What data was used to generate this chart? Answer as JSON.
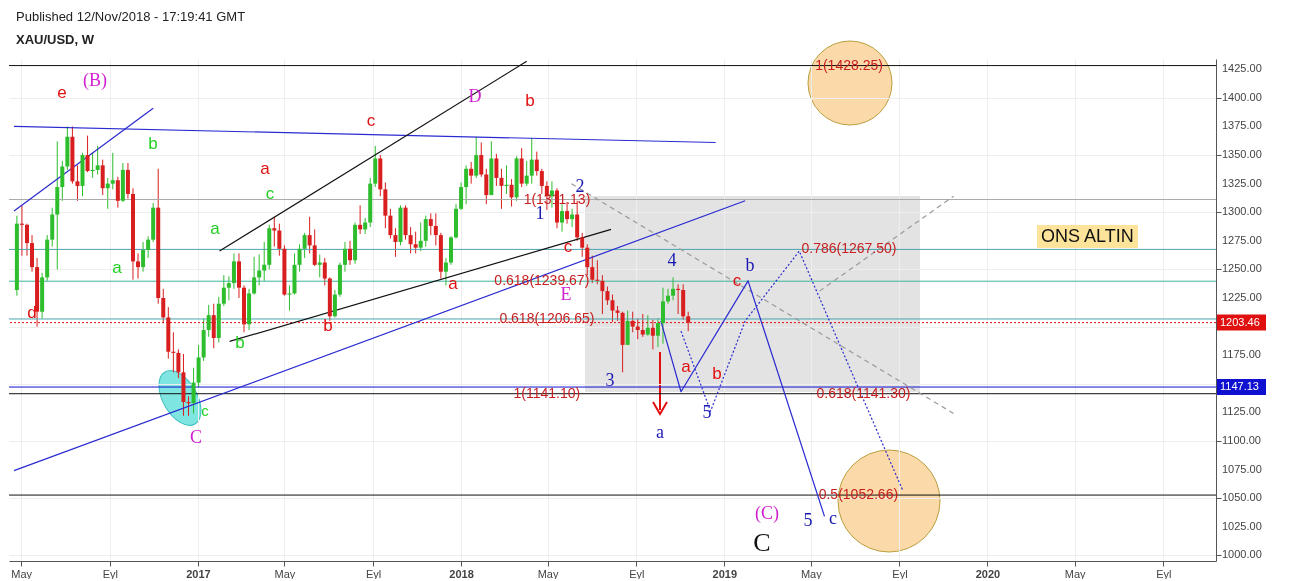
{
  "chart_data": {
    "type": "candlestick",
    "title": "XAU/USD, W",
    "annotations": [
      "Published 12/Nov/2018 - 17:19:41 GMT",
      "ONS ALTIN",
      "e",
      "(B)",
      "b",
      "a",
      "d",
      "c",
      "C",
      "a",
      "a",
      "c",
      "b",
      "c",
      "b",
      "a",
      "D",
      "b",
      "1",
      "2",
      "c",
      "E",
      "3",
      "4",
      "a",
      "5",
      "b",
      "c",
      "a",
      "b",
      "(C)",
      "5",
      "c",
      "C",
      {
        "text": "1(1428.25)",
        "x": "2019-06-23",
        "y": 1428.25
      },
      {
        "text": "0.786(1267.50)",
        "x": "2019-06-23",
        "y": 1267.5
      },
      {
        "text": "0.618(1239.67)",
        "x": "2018-04-23",
        "y": 1239.67
      },
      {
        "text": "0.618(1206.65)",
        "x": "2018-04-30",
        "y": 1206.65
      },
      {
        "text": "1(1141.10)",
        "x": "2018-04-30",
        "y": 1141.1
      },
      {
        "text": "0.618(1141.30)",
        "x": "2019-07-13",
        "y": 1141.3
      },
      {
        "text": "0.5(1052.66)",
        "x": "2019-07-06",
        "y": 1052.66
      },
      {
        "text": "1(1311.13)",
        "x": "2018-05-14",
        "y": 1311.13
      }
    ],
    "x": [
      "2016-04-25",
      "2016-05-02",
      "2016-05-09",
      "2016-05-16",
      "2016-05-23",
      "2016-05-30",
      "2016-06-06",
      "2016-06-13",
      "2016-06-20",
      "2016-06-27",
      "2016-07-04",
      "2016-07-11",
      "2016-07-18",
      "2016-07-25",
      "2016-08-01",
      "2016-08-08",
      "2016-08-15",
      "2016-08-22",
      "2016-08-29",
      "2016-09-05",
      "2016-09-12",
      "2016-09-19",
      "2016-09-26",
      "2016-10-03",
      "2016-10-10",
      "2016-10-17",
      "2016-10-24",
      "2016-10-31",
      "2016-11-07",
      "2016-11-14",
      "2016-11-21",
      "2016-11-28",
      "2016-12-05",
      "2016-12-12",
      "2016-12-19",
      "2016-12-26",
      "2017-01-02",
      "2017-01-09",
      "2017-01-16",
      "2017-01-23",
      "2017-01-30",
      "2017-02-06",
      "2017-02-13",
      "2017-02-20",
      "2017-02-27",
      "2017-03-06",
      "2017-03-13",
      "2017-03-20",
      "2017-03-27",
      "2017-04-03",
      "2017-04-10",
      "2017-04-17",
      "2017-04-24",
      "2017-05-01",
      "2017-05-08",
      "2017-05-15",
      "2017-05-22",
      "2017-05-29",
      "2017-06-05",
      "2017-06-12",
      "2017-06-19",
      "2017-06-26",
      "2017-07-03",
      "2017-07-10",
      "2017-07-17",
      "2017-07-24",
      "2017-07-31",
      "2017-08-07",
      "2017-08-14",
      "2017-08-21",
      "2017-08-28",
      "2017-09-04",
      "2017-09-11",
      "2017-09-18",
      "2017-09-25",
      "2017-10-02",
      "2017-10-09",
      "2017-10-16",
      "2017-10-23",
      "2017-10-30",
      "2017-11-06",
      "2017-11-13",
      "2017-11-20",
      "2017-11-27",
      "2017-12-04",
      "2017-12-11",
      "2017-12-18",
      "2017-12-25",
      "2018-01-01",
      "2018-01-08",
      "2018-01-15",
      "2018-01-22",
      "2018-01-29",
      "2018-02-05",
      "2018-02-12",
      "2018-02-19",
      "2018-02-26",
      "2018-03-05",
      "2018-03-12",
      "2018-03-19",
      "2018-03-26",
      "2018-04-02",
      "2018-04-09",
      "2018-04-16",
      "2018-04-23",
      "2018-04-30",
      "2018-05-07",
      "2018-05-14",
      "2018-05-21",
      "2018-05-28",
      "2018-06-04",
      "2018-06-11",
      "2018-06-18",
      "2018-06-25",
      "2018-07-02",
      "2018-07-09",
      "2018-07-16",
      "2018-07-23",
      "2018-07-30",
      "2018-08-06",
      "2018-08-13",
      "2018-08-20",
      "2018-08-27",
      "2018-09-03",
      "2018-09-10",
      "2018-09-17",
      "2018-09-24",
      "2018-10-01",
      "2018-10-08",
      "2018-10-15",
      "2018-10-22",
      "2018-10-29",
      "2018-11-05",
      "2018-11-12"
    ],
    "ohlc": [
      [
        1232,
        1297,
        1227,
        1290
      ],
      [
        1290,
        1306,
        1262,
        1289
      ],
      [
        1289,
        1290,
        1262,
        1273
      ],
      [
        1273,
        1280,
        1248,
        1252
      ],
      [
        1252,
        1260,
        1200,
        1213
      ],
      [
        1213,
        1247,
        1207,
        1243
      ],
      [
        1243,
        1280,
        1240,
        1276
      ],
      [
        1276,
        1304,
        1270,
        1298
      ],
      [
        1298,
        1362,
        1250,
        1322
      ],
      [
        1322,
        1345,
        1310,
        1340
      ],
      [
        1340,
        1375,
        1337,
        1366
      ],
      [
        1366,
        1375,
        1325,
        1327
      ],
      [
        1327,
        1341,
        1310,
        1323
      ],
      [
        1323,
        1352,
        1314,
        1350
      ],
      [
        1350,
        1367,
        1335,
        1336
      ],
      [
        1336,
        1352,
        1330,
        1337
      ],
      [
        1337,
        1358,
        1333,
        1341
      ],
      [
        1341,
        1346,
        1315,
        1321
      ],
      [
        1321,
        1330,
        1303,
        1325
      ],
      [
        1325,
        1352,
        1320,
        1328
      ],
      [
        1328,
        1331,
        1304,
        1310
      ],
      [
        1310,
        1343,
        1309,
        1337
      ],
      [
        1337,
        1343,
        1312,
        1316
      ],
      [
        1316,
        1321,
        1241,
        1257
      ],
      [
        1257,
        1264,
        1242,
        1252
      ],
      [
        1252,
        1274,
        1248,
        1267
      ],
      [
        1267,
        1279,
        1260,
        1276
      ],
      [
        1276,
        1308,
        1274,
        1304
      ],
      [
        1304,
        1338,
        1220,
        1225
      ],
      [
        1225,
        1233,
        1203,
        1208
      ],
      [
        1208,
        1217,
        1172,
        1178
      ],
      [
        1178,
        1195,
        1160,
        1177
      ],
      [
        1177,
        1180,
        1155,
        1160
      ],
      [
        1160,
        1176,
        1122,
        1134
      ],
      [
        1134,
        1139,
        1122,
        1133
      ],
      [
        1133,
        1164,
        1124,
        1151
      ],
      [
        1151,
        1184,
        1147,
        1173
      ],
      [
        1173,
        1207,
        1170,
        1197
      ],
      [
        1197,
        1219,
        1191,
        1210
      ],
      [
        1210,
        1220,
        1181,
        1190
      ],
      [
        1190,
        1226,
        1186,
        1220
      ],
      [
        1220,
        1245,
        1218,
        1234
      ],
      [
        1234,
        1244,
        1223,
        1238
      ],
      [
        1238,
        1264,
        1233,
        1257
      ],
      [
        1257,
        1264,
        1225,
        1234
      ],
      [
        1234,
        1236,
        1195,
        1202
      ],
      [
        1202,
        1233,
        1197,
        1229
      ],
      [
        1229,
        1261,
        1228,
        1243
      ],
      [
        1243,
        1263,
        1236,
        1249
      ],
      [
        1249,
        1274,
        1240,
        1254
      ],
      [
        1254,
        1289,
        1250,
        1286
      ],
      [
        1286,
        1296,
        1270,
        1284
      ],
      [
        1284,
        1290,
        1262,
        1268
      ],
      [
        1268,
        1271,
        1227,
        1228
      ],
      [
        1228,
        1236,
        1214,
        1229
      ],
      [
        1229,
        1264,
        1228,
        1254
      ],
      [
        1254,
        1272,
        1248,
        1268
      ],
      [
        1268,
        1282,
        1260,
        1280
      ],
      [
        1280,
        1296,
        1264,
        1271
      ],
      [
        1271,
        1285,
        1253,
        1254
      ],
      [
        1254,
        1263,
        1243,
        1256
      ],
      [
        1256,
        1260,
        1236,
        1242
      ],
      [
        1242,
        1243,
        1205,
        1209
      ],
      [
        1209,
        1232,
        1208,
        1228
      ],
      [
        1228,
        1256,
        1226,
        1254
      ],
      [
        1254,
        1274,
        1248,
        1268
      ],
      [
        1268,
        1275,
        1254,
        1258
      ],
      [
        1258,
        1291,
        1255,
        1289
      ],
      [
        1289,
        1306,
        1281,
        1285
      ],
      [
        1285,
        1295,
        1281,
        1291
      ],
      [
        1291,
        1330,
        1287,
        1325
      ],
      [
        1325,
        1358,
        1322,
        1347
      ],
      [
        1347,
        1350,
        1314,
        1320
      ],
      [
        1320,
        1326,
        1286,
        1297
      ],
      [
        1297,
        1303,
        1277,
        1280
      ],
      [
        1280,
        1286,
        1261,
        1274
      ],
      [
        1274,
        1306,
        1271,
        1304
      ],
      [
        1304,
        1306,
        1276,
        1280
      ],
      [
        1280,
        1287,
        1264,
        1272
      ],
      [
        1272,
        1283,
        1264,
        1269
      ],
      [
        1269,
        1291,
        1266,
        1275
      ],
      [
        1275,
        1297,
        1270,
        1294
      ],
      [
        1294,
        1299,
        1280,
        1288
      ],
      [
        1288,
        1299,
        1271,
        1280
      ],
      [
        1280,
        1282,
        1242,
        1248
      ],
      [
        1248,
        1260,
        1236,
        1256
      ],
      [
        1256,
        1279,
        1254,
        1278
      ],
      [
        1278,
        1307,
        1277,
        1303
      ],
      [
        1303,
        1326,
        1302,
        1322
      ],
      [
        1322,
        1341,
        1307,
        1338
      ],
      [
        1338,
        1344,
        1325,
        1332
      ],
      [
        1332,
        1366,
        1330,
        1350
      ],
      [
        1350,
        1361,
        1331,
        1333
      ],
      [
        1333,
        1338,
        1307,
        1315
      ],
      [
        1315,
        1362,
        1315,
        1347
      ],
      [
        1347,
        1351,
        1323,
        1330
      ],
      [
        1330,
        1338,
        1303,
        1323
      ],
      [
        1323,
        1341,
        1316,
        1324
      ],
      [
        1324,
        1329,
        1305,
        1313
      ],
      [
        1313,
        1349,
        1310,
        1347
      ],
      [
        1347,
        1356,
        1322,
        1325
      ],
      [
        1325,
        1345,
        1323,
        1332
      ],
      [
        1332,
        1365,
        1325,
        1346
      ],
      [
        1346,
        1353,
        1332,
        1336
      ],
      [
        1336,
        1338,
        1316,
        1323
      ],
      [
        1323,
        1327,
        1302,
        1314
      ],
      [
        1314,
        1327,
        1304,
        1319
      ],
      [
        1319,
        1321,
        1286,
        1291
      ],
      [
        1291,
        1307,
        1283,
        1301
      ],
      [
        1301,
        1309,
        1290,
        1294
      ],
      [
        1294,
        1303,
        1287,
        1298
      ],
      [
        1298,
        1310,
        1275,
        1278
      ],
      [
        1278,
        1282,
        1261,
        1269
      ],
      [
        1269,
        1272,
        1245,
        1252
      ],
      [
        1252,
        1262,
        1238,
        1241
      ],
      [
        1241,
        1258,
        1237,
        1240
      ],
      [
        1240,
        1245,
        1211,
        1231
      ],
      [
        1231,
        1235,
        1219,
        1223
      ],
      [
        1223,
        1228,
        1204,
        1214
      ],
      [
        1214,
        1218,
        1205,
        1212
      ],
      [
        1212,
        1213,
        1160,
        1184
      ],
      [
        1184,
        1214,
        1184,
        1205
      ],
      [
        1205,
        1213,
        1195,
        1200
      ],
      [
        1200,
        1207,
        1189,
        1197
      ],
      [
        1197,
        1211,
        1191,
        1193
      ],
      [
        1193,
        1210,
        1192,
        1199
      ],
      [
        1199,
        1206,
        1180,
        1192
      ],
      [
        1192,
        1207,
        1182,
        1203
      ],
      [
        1203,
        1234,
        1185,
        1222
      ],
      [
        1222,
        1233,
        1220,
        1227
      ],
      [
        1227,
        1243,
        1223,
        1233
      ],
      [
        1233,
        1237,
        1211,
        1232
      ],
      [
        1232,
        1237,
        1206,
        1209
      ],
      [
        1209,
        1213,
        1196,
        1203.46
      ]
    ],
    "colors": [
      "#2dbd2d",
      "#d81e1e",
      "#d81e1e",
      "#d81e1e",
      "#d81e1e",
      "#2dbd2d",
      "#2dbd2d",
      "#2dbd2d",
      "#2dbd2d",
      "#2dbd2d",
      "#2dbd2d",
      "#d81e1e",
      "#d81e1e",
      "#2dbd2d",
      "#d81e1e",
      "#2dbd2d",
      "#2dbd2d",
      "#d81e1e",
      "#2dbd2d",
      "#2dbd2d",
      "#d81e1e",
      "#2dbd2d",
      "#d81e1e",
      "#d81e1e",
      "#d81e1e",
      "#2dbd2d",
      "#2dbd2d",
      "#2dbd2d",
      "#d81e1e",
      "#d81e1e",
      "#d81e1e",
      "#d81e1e",
      "#d81e1e",
      "#d81e1e",
      "#d81e1e",
      "#2dbd2d",
      "#2dbd2d",
      "#2dbd2d",
      "#2dbd2d",
      "#d81e1e",
      "#2dbd2d",
      "#2dbd2d",
      "#2dbd2d",
      "#2dbd2d",
      "#d81e1e",
      "#d81e1e",
      "#2dbd2d",
      "#2dbd2d",
      "#2dbd2d",
      "#2dbd2d",
      "#2dbd2d",
      "#d81e1e",
      "#d81e1e",
      "#d81e1e",
      "#2dbd2d",
      "#2dbd2d",
      "#2dbd2d",
      "#2dbd2d",
      "#d81e1e",
      "#d81e1e",
      "#2dbd2d",
      "#d81e1e",
      "#d81e1e",
      "#2dbd2d",
      "#2dbd2d",
      "#2dbd2d",
      "#d81e1e",
      "#2dbd2d",
      "#d81e1e",
      "#2dbd2d",
      "#2dbd2d",
      "#2dbd2d",
      "#d81e1e",
      "#d81e1e",
      "#d81e1e",
      "#d81e1e",
      "#2dbd2d",
      "#d81e1e",
      "#d81e1e",
      "#d81e1e",
      "#2dbd2d",
      "#2dbd2d",
      "#d81e1e",
      "#d81e1e",
      "#d81e1e",
      "#2dbd2d",
      "#2dbd2d",
      "#2dbd2d",
      "#2dbd2d",
      "#2dbd2d",
      "#d81e1e",
      "#2dbd2d",
      "#d81e1e",
      "#d81e1e",
      "#2dbd2d",
      "#d81e1e",
      "#d81e1e",
      "#2dbd2d",
      "#d81e1e",
      "#2dbd2d",
      "#d81e1e",
      "#2dbd2d",
      "#2dbd2d",
      "#d81e1e",
      "#d81e1e",
      "#d81e1e",
      "#2dbd2d",
      "#d81e1e",
      "#2dbd2d",
      "#d81e1e",
      "#2dbd2d",
      "#d81e1e",
      "#d81e1e",
      "#d81e1e",
      "#d81e1e",
      "#d81e1e",
      "#d81e1e",
      "#d81e1e",
      "#d81e1e",
      "#d81e1e",
      "#d81e1e",
      "#2dbd2d",
      "#d81e1e",
      "#d81e1e",
      "#d81e1e",
      "#2dbd2d",
      "#d81e1e",
      "#2dbd2d",
      "#2dbd2d",
      "#2dbd2d",
      "#2dbd2d",
      "#d81e1e",
      "#d81e1e",
      "#d81e1e"
    ],
    "series": [
      {
        "type": "line",
        "color": "#2a2ad0",
        "x": [
          "2016-04-21",
          "2018-12-20"
        ],
        "values": [
          1375,
          1361
        ]
      },
      {
        "type": "line",
        "color": "#2a2ad0",
        "x": [
          "2016-04-21",
          "2019-01-30"
        ],
        "values": [
          1074,
          1310
        ]
      },
      {
        "type": "line",
        "color": "#2a2ad0",
        "x": [
          "2016-04-21",
          "2016-10-31"
        ],
        "values": [
          1301,
          1391
        ]
      },
      {
        "type": "line",
        "color": "#111111",
        "x": [
          "2017-02-14",
          "2018-07-28"
        ],
        "values": [
          1187,
          1285
        ]
      },
      {
        "type": "line",
        "color": "#111111",
        "x": [
          "2017-01-31",
          "2018-04-02"
        ],
        "values": [
          1266,
          1432
        ]
      },
      {
        "type": "line",
        "color": "#9a9a9a",
        "line_style": "dashed",
        "x": [
          "2018-06-03",
          "2019-11-15"
        ],
        "values": [
          1325,
          1124
        ]
      },
      {
        "type": "line",
        "color": "#9a9a9a",
        "line_style": "dashed",
        "x": [
          "2019-05-13",
          "2019-11-15"
        ],
        "values": [
          1231,
          1314
        ]
      },
      {
        "type": "line",
        "color": "#2a2ad0",
        "x": [
          "2018-10-05",
          "2018-11-02",
          "2019-02-03",
          "2019-05-20"
        ],
        "values": [
          1205,
          1143,
          1240,
          1034
        ]
      },
      {
        "type": "line",
        "color": "#2a2ad0",
        "line_style": "dotted",
        "x": [
          "2018-11-02",
          "2018-12-13",
          "2019-01-30",
          "2019-04-15",
          "2019-09-06"
        ],
        "values": [
          1196,
          1126,
          1205,
          1266,
          1056
        ]
      }
    ],
    "ref_lines": [
      {
        "axis": "y",
        "value": 1428.25,
        "color": "#111111"
      },
      {
        "axis": "y",
        "value": 1311.13,
        "color": "#aaaaaa"
      },
      {
        "axis": "y",
        "value": 1267.5,
        "color": "#4aa3b0"
      },
      {
        "axis": "y",
        "value": 1239.67,
        "color": "#3fb59a"
      },
      {
        "axis": "y",
        "value": 1206.65,
        "color": "#4aa3b0"
      },
      {
        "axis": "y",
        "value": 1203.46,
        "label": "1203.46",
        "color": "#e01010",
        "line_style": "dotted"
      },
      {
        "axis": "y",
        "value": 1147.13,
        "label": "1147.13",
        "color": "#1010d0"
      },
      {
        "axis": "y",
        "value": 1141.3,
        "color": "#111111"
      },
      {
        "axis": "y",
        "value": 1052.66,
        "color": "#111111"
      }
    ],
    "xlim": [
      "2016-04-21",
      "2020-11-06"
    ],
    "xticks": [
      {
        "value": "2016-05-01",
        "label": "May"
      },
      {
        "value": "2016-09-01",
        "label": "Eyl"
      },
      {
        "value": "2017-01-01",
        "label": "2017"
      },
      {
        "value": "2017-05-01",
        "label": "May"
      },
      {
        "value": "2017-09-01",
        "label": "Eyl"
      },
      {
        "value": "2018-01-01",
        "label": "2018"
      },
      {
        "value": "2018-05-01",
        "label": "May"
      },
      {
        "value": "2018-09-01",
        "label": "Eyl"
      },
      {
        "value": "2019-01-01",
        "label": "2019"
      },
      {
        "value": "2019-05-01",
        "label": "May"
      },
      {
        "value": "2019-09-01",
        "label": "Eyl"
      },
      {
        "value": "2020-01-01",
        "label": "2020"
      },
      {
        "value": "2020-05-01",
        "label": "May"
      },
      {
        "value": "2020-09-01",
        "label": "Eyl"
      }
    ],
    "ylim": [
      995,
      1434
    ],
    "yticks": [
      {
        "value": 1000,
        "label": "1000.00"
      },
      {
        "value": 1025,
        "label": "1025.00"
      },
      {
        "value": 1050,
        "label": "1050.00"
      },
      {
        "value": 1075,
        "label": "1075.00"
      },
      {
        "value": 1100,
        "label": "1100.00"
      },
      {
        "value": 1125,
        "label": "1125.00"
      },
      {
        "value": 1150,
        "label": null
      },
      {
        "value": 1175,
        "label": "1175.00"
      },
      {
        "value": 1200,
        "label": null
      },
      {
        "value": 1225,
        "label": "1225.00"
      },
      {
        "value": 1250,
        "label": "1250.00"
      },
      {
        "value": 1275,
        "label": "1275.00"
      },
      {
        "value": 1300,
        "label": "1300.00"
      },
      {
        "value": 1325,
        "label": "1325.00"
      },
      {
        "value": 1350,
        "label": "1350.00"
      },
      {
        "value": 1375,
        "label": "1375.00"
      },
      {
        "value": 1400,
        "label": "1400.00"
      },
      {
        "value": 1425,
        "label": "1425.00"
      }
    ],
    "grid": true
  }
}
